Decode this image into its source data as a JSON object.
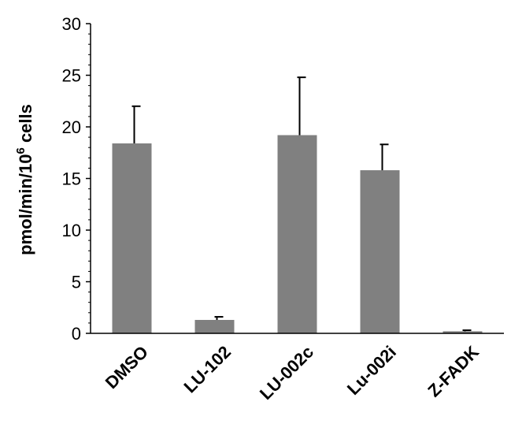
{
  "chart_data": {
    "type": "bar",
    "title": "",
    "xlabel": "",
    "ylabel": {
      "prefix": "pmol/min/10",
      "superscript": "6",
      "suffix": " cells"
    },
    "ylim": [
      0,
      30
    ],
    "yticks": [
      0,
      5,
      10,
      15,
      20,
      25,
      30
    ],
    "categories": [
      "DMSO",
      "LU-102",
      "LU-002c",
      "Lu-002i",
      "Z-FADK"
    ],
    "values": [
      18.4,
      1.3,
      19.2,
      15.8,
      0.2
    ],
    "error_upper": [
      3.6,
      0.3,
      5.6,
      2.5,
      0.1
    ],
    "bar_color": "#808080",
    "grid": false,
    "legend": "none"
  }
}
